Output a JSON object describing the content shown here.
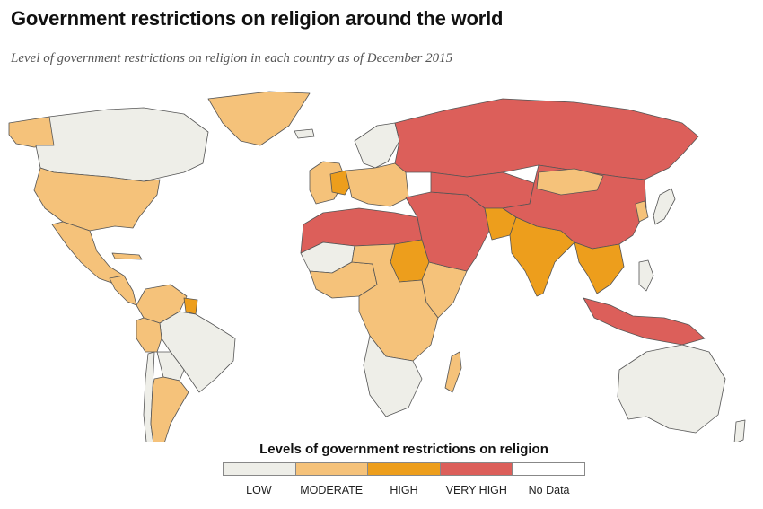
{
  "title": "Government restrictions on religion around the world",
  "subtitle": "Level of government restrictions on religion in each country as of December 2015",
  "legend": {
    "title": "Levels of government restrictions on religion",
    "items": [
      {
        "label": "LOW",
        "color": "#eeeee8"
      },
      {
        "label": "MODERATE",
        "color": "#f5c27a"
      },
      {
        "label": "HIGH",
        "color": "#ed9e1c"
      },
      {
        "label": "VERY HIGH",
        "color": "#dc5f5a"
      },
      {
        "label": "No Data",
        "color": "#ffffff"
      }
    ]
  },
  "map": {
    "border_color": "#555555",
    "regions": [
      {
        "name": "canada",
        "level": "low"
      },
      {
        "name": "alaska",
        "level": "moderate"
      },
      {
        "name": "greenland",
        "level": "moderate"
      },
      {
        "name": "iceland",
        "level": "low"
      },
      {
        "name": "united-states",
        "level": "moderate"
      },
      {
        "name": "mexico",
        "level": "moderate"
      },
      {
        "name": "cuba",
        "level": "moderate"
      },
      {
        "name": "central-america",
        "level": "moderate"
      },
      {
        "name": "colombia-venezuela",
        "level": "moderate"
      },
      {
        "name": "guyana",
        "level": "high"
      },
      {
        "name": "peru",
        "level": "moderate"
      },
      {
        "name": "brazil",
        "level": "low"
      },
      {
        "name": "bolivia-paraguay",
        "level": "low"
      },
      {
        "name": "chile",
        "level": "low"
      },
      {
        "name": "argentina",
        "level": "moderate"
      },
      {
        "name": "western-europe",
        "level": "moderate"
      },
      {
        "name": "france",
        "level": "high"
      },
      {
        "name": "scandinavia",
        "level": "low"
      },
      {
        "name": "eastern-europe",
        "level": "moderate"
      },
      {
        "name": "russia",
        "level": "very-high"
      },
      {
        "name": "north-africa",
        "level": "very-high"
      },
      {
        "name": "west-africa",
        "level": "moderate"
      },
      {
        "name": "mauritania-mali",
        "level": "low"
      },
      {
        "name": "sudan",
        "level": "high"
      },
      {
        "name": "horn-of-africa",
        "level": "moderate"
      },
      {
        "name": "central-africa",
        "level": "moderate"
      },
      {
        "name": "southern-africa",
        "level": "low"
      },
      {
        "name": "madagascar",
        "level": "moderate"
      },
      {
        "name": "middle-east",
        "level": "very-high"
      },
      {
        "name": "central-asia",
        "level": "very-high"
      },
      {
        "name": "pakistan",
        "level": "high"
      },
      {
        "name": "india",
        "level": "high"
      },
      {
        "name": "china",
        "level": "very-high"
      },
      {
        "name": "mongolia",
        "level": "moderate"
      },
      {
        "name": "southeast-asia",
        "level": "high"
      },
      {
        "name": "korea",
        "level": "moderate"
      },
      {
        "name": "japan",
        "level": "low"
      },
      {
        "name": "indonesia",
        "level": "very-high"
      },
      {
        "name": "philippines",
        "level": "low"
      },
      {
        "name": "australia",
        "level": "low"
      },
      {
        "name": "new-zealand",
        "level": "low"
      }
    ]
  }
}
